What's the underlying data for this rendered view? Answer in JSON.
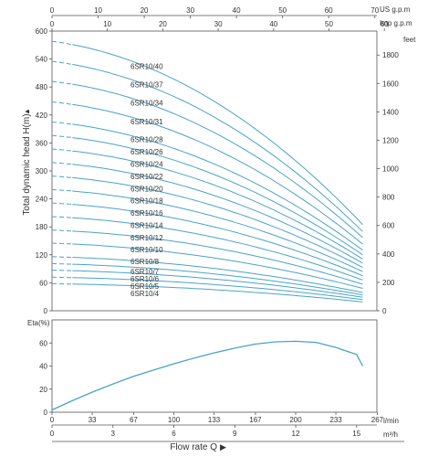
{
  "chart_data": [
    {
      "type": "line",
      "ylabel": "Total dynamic head H(m)",
      "ylabel_arrow": "▲",
      "right_axis_label": "feet",
      "ylim": [
        0,
        600
      ],
      "y_ticks": [
        "0",
        "60",
        "120",
        "180",
        "240",
        "300",
        "360",
        "420",
        "480",
        "540",
        "600"
      ],
      "right_ticks": [
        "0",
        "200",
        "400",
        "600",
        "800",
        "1000",
        "1200",
        "1400",
        "1600",
        "1800"
      ],
      "top_axis_us": {
        "label": "US g.p.m",
        "ticks": [
          "0",
          "10",
          "20",
          "30",
          "40",
          "50",
          "60",
          "70"
        ]
      },
      "top_axis_imp": {
        "label": "Imp g.p.m",
        "ticks": [
          "0",
          "10",
          "20",
          "30",
          "40",
          "50",
          "60"
        ]
      },
      "x_range_m3h": [
        0,
        16
      ],
      "series": [
        {
          "name": "6SR10/40",
          "shutoff": 578,
          "end": 185
        },
        {
          "name": "6SR10/37",
          "shutoff": 535,
          "end": 170
        },
        {
          "name": "6SR10/34",
          "shutoff": 492,
          "end": 157
        },
        {
          "name": "6SR10/31",
          "shutoff": 448,
          "end": 143
        },
        {
          "name": "6SR10/28",
          "shutoff": 405,
          "end": 130
        },
        {
          "name": "6SR10/26",
          "shutoff": 376,
          "end": 120
        },
        {
          "name": "6SR10/24",
          "shutoff": 347,
          "end": 111
        },
        {
          "name": "6SR10/22",
          "shutoff": 318,
          "end": 102
        },
        {
          "name": "6SR10/20",
          "shutoff": 289,
          "end": 93
        },
        {
          "name": "6SR10/18",
          "shutoff": 260,
          "end": 84
        },
        {
          "name": "6SR10/16",
          "shutoff": 231,
          "end": 75
        },
        {
          "name": "6SR10/14",
          "shutoff": 202,
          "end": 66
        },
        {
          "name": "6SR10/12",
          "shutoff": 173,
          "end": 57
        },
        {
          "name": "6SR10/10",
          "shutoff": 145,
          "end": 48
        },
        {
          "name": "6SR10/8",
          "shutoff": 116,
          "end": 39
        },
        {
          "name": "6SR10/7",
          "shutoff": 101,
          "end": 34
        },
        {
          "name": "6SR10/6",
          "shutoff": 87,
          "end": 29
        },
        {
          "name": "6SR10/5",
          "shutoff": 72,
          "end": 24
        },
        {
          "name": "6SR10/4",
          "shutoff": 58,
          "end": 19
        }
      ]
    },
    {
      "type": "line",
      "ylabel": "Eta(%)",
      "ylim": [
        0,
        80
      ],
      "y_ticks": [
        "0",
        "20",
        "40",
        "60"
      ],
      "x_ticks_lmin": [
        "0",
        "33",
        "67",
        "100",
        "133",
        "167",
        "200",
        "233",
        "267"
      ],
      "x_unit_lmin": "l/min",
      "x_ticks_m3h": [
        "0",
        "3",
        "6",
        "9",
        "12",
        "15"
      ],
      "x_unit_m3h": "m³/h",
      "xlabel": "Flow  rate Q",
      "xlabel_arrow": "▶",
      "series": [
        {
          "x": [
            0,
            1,
            2,
            3,
            4,
            5,
            6,
            7,
            8,
            9,
            10,
            11,
            12,
            13,
            14,
            15,
            16
          ],
          "y": [
            2,
            10,
            17.5,
            24.5,
            31,
            36.5,
            42,
            47,
            51.5,
            55.5,
            59,
            61,
            61.5,
            60.5,
            56,
            50,
            40
          ]
        }
      ]
    }
  ]
}
